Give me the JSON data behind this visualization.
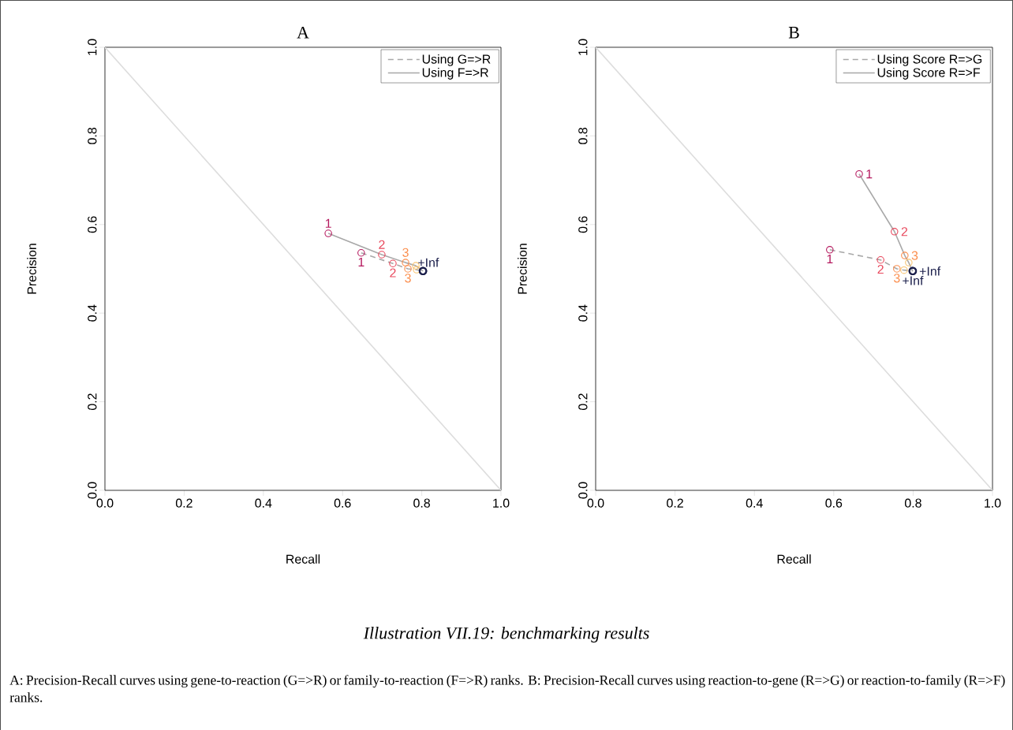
{
  "chart_data": [
    {
      "type": "line",
      "title": "A",
      "xlabel": "Recall",
      "ylabel": "Precision",
      "xlim": [
        0,
        1
      ],
      "ylim": [
        0,
        1
      ],
      "xticks": [
        {
          "value": 0,
          "label": "0.0"
        },
        {
          "value": 0.2,
          "label": "0.2"
        },
        {
          "value": 0.4,
          "label": "0.4"
        },
        {
          "value": 0.6,
          "label": "0.6"
        },
        {
          "value": 0.8,
          "label": "0.8"
        },
        {
          "value": 1,
          "label": "1.0"
        }
      ],
      "yticks": [
        {
          "value": 0,
          "label": "0.0"
        },
        {
          "value": 0.2,
          "label": "0.2"
        },
        {
          "value": 0.4,
          "label": "0.4"
        },
        {
          "value": 0.6,
          "label": "0.6"
        },
        {
          "value": 0.8,
          "label": "0.8"
        },
        {
          "value": 1,
          "label": "1.0"
        }
      ],
      "legend": "top right",
      "marker": "circle",
      "grid": false,
      "series": [
        {
          "name": "Using G=>R",
          "color": "#a8a8a8",
          "line_style": "dashed",
          "x": [
            0.647,
            0.727,
            0.765,
            0.787,
            0.803
          ],
          "values": [
            0.536,
            0.512,
            0.5,
            0.498,
            0.495
          ],
          "colors": [
            "#b5195e",
            "#e8455a",
            "#fb8c4a",
            "#f8c471",
            "#1b1f4b"
          ]
        },
        {
          "name": "Using F=>R",
          "color": "#a8a8a8",
          "line_style": "solid",
          "x": [
            0.564,
            0.699,
            0.759,
            0.785,
            0.803
          ],
          "values": [
            0.58,
            0.532,
            0.514,
            0.507,
            0.495
          ],
          "colors": [
            "#b5195e",
            "#e8455a",
            "#fb8c4a",
            "#f8c471",
            "#1b1f4b"
          ]
        },
        {
          "color": "#dddddd",
          "line_style": "solid",
          "marker": "none",
          "x": [
            0,
            1
          ],
          "values": [
            1,
            0
          ]
        }
      ],
      "annotations": [
        {
          "text": "1",
          "x": 0.647,
          "y": 0.536
        },
        {
          "text": "2",
          "x": 0.727,
          "y": 0.512
        },
        {
          "text": "3",
          "x": 0.765,
          "y": 0.5
        },
        {
          "text": "1",
          "x": 0.564,
          "y": 0.58
        },
        {
          "text": "2",
          "x": 0.699,
          "y": 0.532
        },
        {
          "text": "3",
          "x": 0.759,
          "y": 0.514
        },
        {
          "text": "+Inf",
          "x": 0.803,
          "y": 0.495
        }
      ]
    },
    {
      "type": "line",
      "title": "B",
      "xlabel": "Recall",
      "ylabel": "Precision",
      "xlim": [
        0,
        1
      ],
      "ylim": [
        0,
        1
      ],
      "xticks": [
        {
          "value": 0,
          "label": "0.0"
        },
        {
          "value": 0.2,
          "label": "0.2"
        },
        {
          "value": 0.4,
          "label": "0.4"
        },
        {
          "value": 0.6,
          "label": "0.6"
        },
        {
          "value": 0.8,
          "label": "0.8"
        },
        {
          "value": 1,
          "label": "1.0"
        }
      ],
      "yticks": [
        {
          "value": 0,
          "label": "0.0"
        },
        {
          "value": 0.2,
          "label": "0.2"
        },
        {
          "value": 0.4,
          "label": "0.4"
        },
        {
          "value": 0.6,
          "label": "0.6"
        },
        {
          "value": 0.8,
          "label": "0.8"
        },
        {
          "value": 1,
          "label": "1.0"
        }
      ],
      "legend": "top right",
      "marker": "circle",
      "grid": false,
      "series": [
        {
          "name": "Using Score R=>G",
          "color": "#a8a8a8",
          "line_style": "dashed",
          "x": [
            0.59,
            0.718,
            0.759,
            0.777,
            0.799
          ],
          "values": [
            0.543,
            0.52,
            0.5,
            0.497,
            0.495
          ],
          "colors": [
            "#b5195e",
            "#e8455a",
            "#fb8c4a",
            "#f8c471",
            "#1b1f4b"
          ]
        },
        {
          "name": "Using Score R=>F",
          "color": "#a8a8a8",
          "line_style": "solid",
          "x": [
            0.664,
            0.753,
            0.779,
            0.789,
            0.799
          ],
          "values": [
            0.714,
            0.584,
            0.53,
            0.514,
            0.495
          ],
          "colors": [
            "#b5195e",
            "#e8455a",
            "#fb8c4a",
            "#f8c471",
            "#1b1f4b"
          ]
        },
        {
          "color": "#dddddd",
          "line_style": "solid",
          "marker": "none",
          "x": [
            0,
            1
          ],
          "values": [
            1,
            0
          ]
        }
      ],
      "annotations": [
        {
          "text": "1",
          "x": 0.59,
          "y": 0.543
        },
        {
          "text": "2",
          "x": 0.718,
          "y": 0.52
        },
        {
          "text": "3",
          "x": 0.759,
          "y": 0.5
        },
        {
          "text": "+Inf",
          "x": 0.799,
          "y": 0.495
        },
        {
          "text": "1",
          "x": 0.664,
          "y": 0.714
        },
        {
          "text": "2",
          "x": 0.753,
          "y": 0.584
        },
        {
          "text": "3",
          "x": 0.779,
          "y": 0.53
        },
        {
          "text": "+Inf",
          "x": 0.799,
          "y": 0.495
        },
        "Illustration VII.19: benchmarking results",
        "A: Precision-Recall curves using gene-to-reaction (G=>R) or family-to-reaction (F=>R) ranks. B: Precision-Recall curves using reaction-to-gene (R=>G) or reaction-to-family (R=>F) ranks."
      ]
    }
  ]
}
